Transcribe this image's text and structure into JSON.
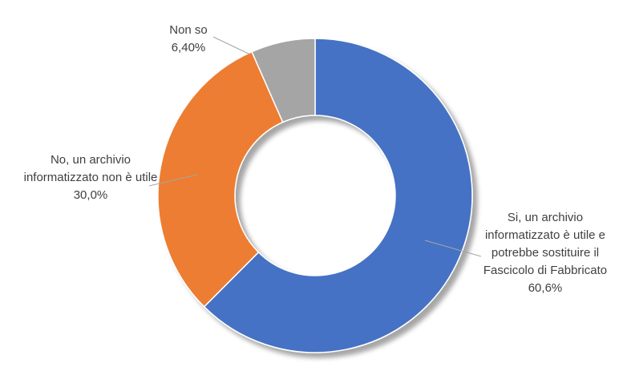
{
  "chart_data": {
    "type": "pie",
    "categories": [
      "Si, un archivio informatizzato è utile e potrebbe sostituire il Fascicolo di Fabbricato",
      "No, un archivio informatizzato non è utile",
      "Non so"
    ],
    "values": [
      60.6,
      30.0,
      6.4
    ],
    "value_labels": [
      "60,6%",
      "30,0%",
      "6,40%"
    ],
    "colors": [
      "#4472c4",
      "#ed7d31",
      "#a5a5a5"
    ]
  }
}
